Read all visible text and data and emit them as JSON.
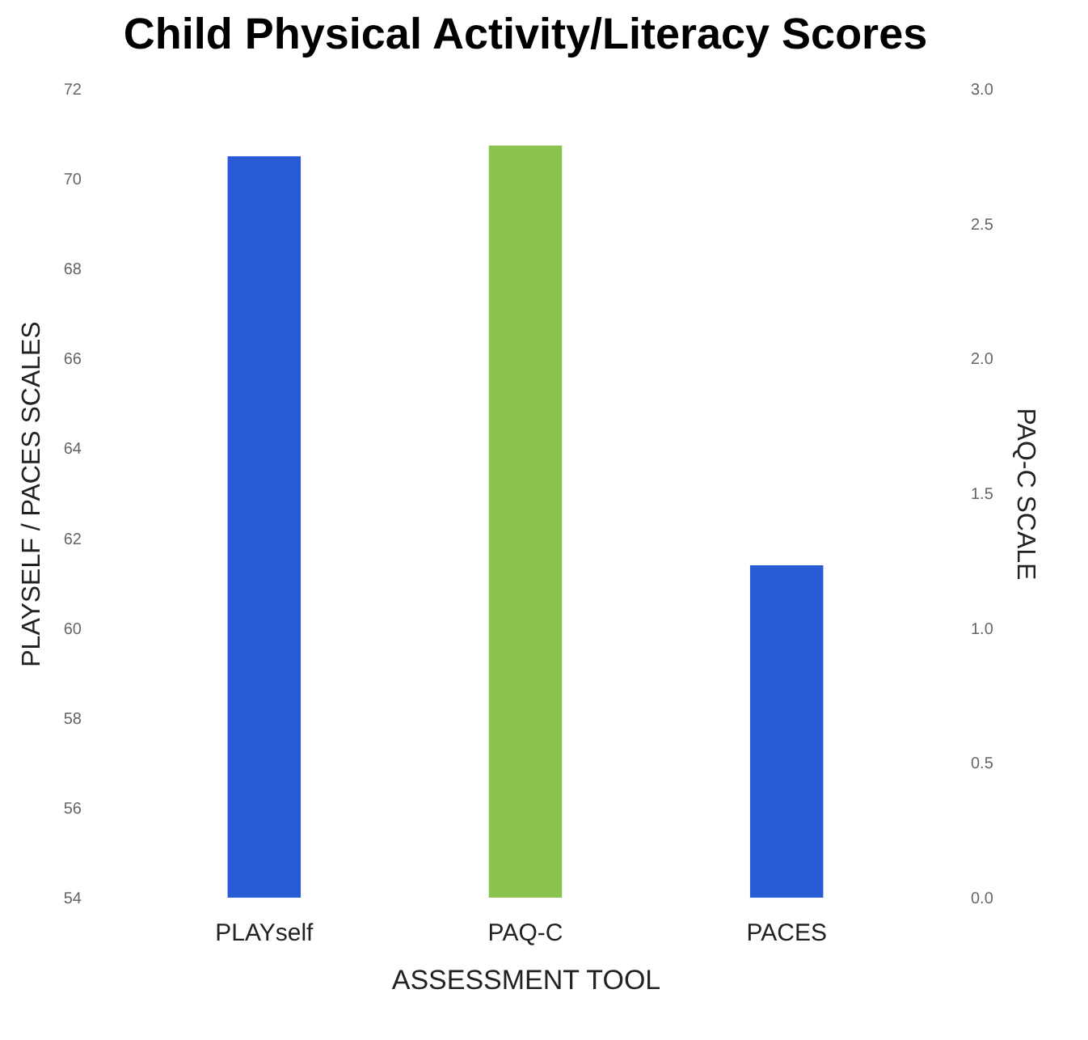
{
  "chart_data": {
    "type": "bar",
    "title": "Child Physical Activity/Literacy Scores",
    "xlabel": "ASSESSMENT TOOL",
    "ylabel": "PLAYSELF / PACES SCALES",
    "y2label": "PAQ-C SCALE",
    "categories": [
      "PLAYself",
      "PAQ-C",
      "PACES"
    ],
    "series": [
      {
        "color": "#2a5bd7",
        "values": [
          70.5,
          null,
          61.4
        ]
      },
      {
        "color": "#8bc34f",
        "axis": "y2",
        "values": [
          null,
          2.79,
          null
        ]
      }
    ],
    "ylim": [
      54,
      72
    ],
    "yticks": [
      54,
      56,
      58,
      60,
      62,
      64,
      66,
      68,
      70,
      72
    ],
    "y2lim": [
      0,
      3
    ],
    "y2ticks": [
      {
        "value": 0,
        "label": "0.0"
      },
      {
        "value": 0.5,
        "label": "0.5"
      },
      {
        "value": 1,
        "label": "1.0"
      },
      {
        "value": 1.5,
        "label": "1.5"
      },
      {
        "value": 2,
        "label": "2.0"
      },
      {
        "value": 2.5,
        "label": "2.5"
      },
      {
        "value": 3,
        "label": "3.0"
      }
    ],
    "grid": false
  }
}
